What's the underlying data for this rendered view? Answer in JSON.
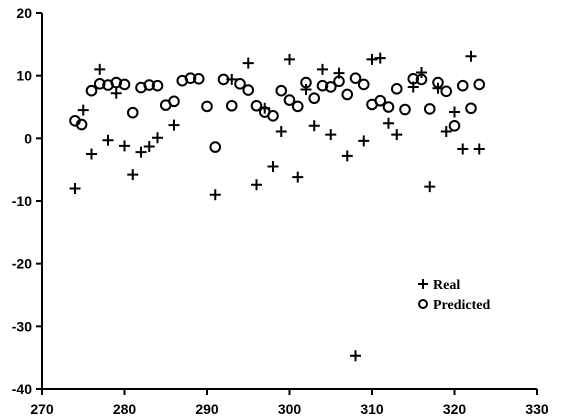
{
  "chart_data": {
    "type": "scatter",
    "title": "",
    "xlabel": "",
    "ylabel": "",
    "xlim": [
      270,
      330
    ],
    "ylim": [
      -40,
      20
    ],
    "x_ticks": [
      270,
      280,
      290,
      300,
      310,
      320,
      330
    ],
    "y_ticks": [
      20,
      10,
      0,
      -10,
      -20,
      -30,
      -40
    ],
    "x_tick_labels": [
      "270",
      "280",
      "290",
      "300",
      "310",
      "320",
      "330"
    ],
    "y_tick_labels": [
      "20",
      "10",
      "0",
      "-10",
      "-20",
      "-30",
      "-40"
    ],
    "grid": false,
    "legend_position": "lower-right",
    "series": [
      {
        "name": "Real",
        "marker": "plus",
        "x": [
          274,
          275,
          276,
          277,
          278,
          279,
          280,
          281,
          282,
          283,
          284,
          286,
          291,
          293,
          295,
          296,
          297,
          298,
          299,
          300,
          301,
          302,
          303,
          304,
          305,
          306,
          307,
          308,
          309,
          310,
          311,
          312,
          313,
          315,
          316,
          317,
          318,
          319,
          320,
          321,
          322,
          323
        ],
        "y": [
          -8,
          4.5,
          -2.5,
          11,
          -0.3,
          7.2,
          -1.2,
          -5.8,
          -2.2,
          -1.3,
          0.1,
          2.1,
          -9,
          9.4,
          12,
          -7.4,
          4.8,
          -4.5,
          1.1,
          12.6,
          -6.2,
          7.8,
          2,
          11,
          0.6,
          10.4,
          -2.8,
          -34.7,
          -0.4,
          12.6,
          12.8,
          2.4,
          0.6,
          8.2,
          10.5,
          -7.7,
          8,
          1.1,
          4.2,
          -1.7,
          13.1,
          -1.7
        ]
      },
      {
        "name": "Predicted",
        "marker": "circle",
        "x": [
          274,
          274.8,
          276,
          277,
          278,
          279,
          280,
          281,
          282,
          283,
          284,
          285,
          286,
          287,
          288,
          289,
          290,
          291,
          292,
          293,
          294,
          295,
          296,
          297,
          298,
          299,
          300,
          301,
          302,
          303,
          304,
          305,
          306,
          307,
          308,
          309,
          310,
          311,
          312,
          313,
          314,
          315,
          316,
          317,
          318,
          319,
          320,
          321,
          322,
          323
        ],
        "y": [
          2.8,
          2.2,
          7.6,
          8.7,
          8.5,
          8.9,
          8.6,
          4.1,
          8.1,
          8.5,
          8.4,
          5.3,
          5.9,
          9.2,
          9.6,
          9.5,
          5.1,
          -1.4,
          9.4,
          5.2,
          8.7,
          7.7,
          5.2,
          4.2,
          3.6,
          7.6,
          6.1,
          5.1,
          8.9,
          6.4,
          8.4,
          8.2,
          9.1,
          7,
          9.6,
          8.6,
          5.4,
          6,
          5,
          7.9,
          4.6,
          9.5,
          9.4,
          4.7,
          8.9,
          7.5,
          2,
          8.4,
          4.8,
          8.6
        ]
      }
    ]
  }
}
